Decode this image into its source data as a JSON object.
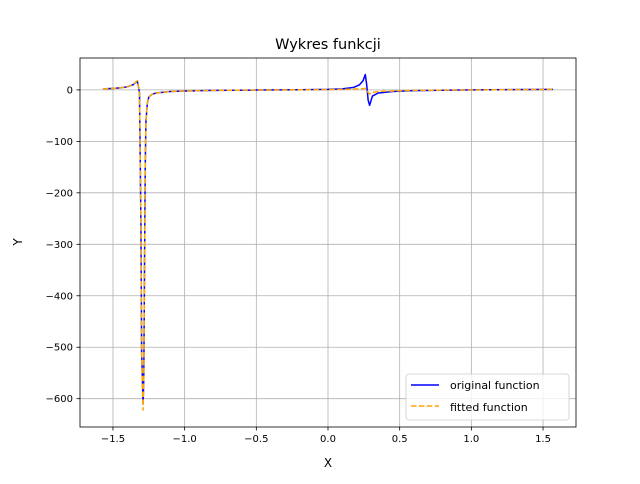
{
  "chart_data": {
    "type": "line",
    "title": "Wykres funkcji",
    "xlabel": "X",
    "ylabel": "Y",
    "xlim": [
      -1.73,
      1.73
    ],
    "ylim": [
      -655,
      62
    ],
    "grid": true,
    "legend_position": "lower-right",
    "x_ticks": [
      -1.5,
      -1.0,
      -0.5,
      0.0,
      0.5,
      1.0,
      1.5
    ],
    "x_tick_labels": [
      "−1.5",
      "−1.0",
      "−0.5",
      "0.0",
      "0.5",
      "1.0",
      "1.5"
    ],
    "y_ticks": [
      0,
      -100,
      -200,
      -300,
      -400,
      -500,
      -600
    ],
    "y_tick_labels": [
      "0",
      "−100",
      "−200",
      "−300",
      "−400",
      "−500",
      "−600"
    ],
    "colors": {
      "original": "#0000ff",
      "fitted": "#ffa500",
      "grid": "#b0b0b0"
    },
    "series": [
      {
        "name": "original function",
        "style": "solid",
        "color": "#0000ff",
        "x": [
          -1.57,
          -1.5,
          -1.45,
          -1.4,
          -1.36,
          -1.33,
          -1.315,
          -1.305,
          -1.3,
          -1.29,
          -1.285,
          -1.28,
          -1.275,
          -1.27,
          -1.26,
          -1.25,
          -1.23,
          -1.2,
          -1.1,
          -1.0,
          -0.8,
          -0.5,
          -0.2,
          0.0,
          0.1,
          0.18,
          0.22,
          0.245,
          0.26,
          0.27,
          0.28,
          0.29,
          0.31,
          0.35,
          0.45,
          0.6,
          1.0,
          1.57
        ],
        "y": [
          2,
          3,
          4,
          6,
          10,
          17,
          -5,
          -260,
          -510,
          -610,
          -560,
          -350,
          -150,
          -60,
          -25,
          -14,
          -9,
          -6,
          -3,
          -2,
          -1,
          -0.3,
          0.3,
          1,
          2,
          5,
          10,
          18,
          30,
          10,
          -20,
          -30,
          -12,
          -6,
          -3,
          -1.5,
          0,
          1
        ]
      },
      {
        "name": "fitted function",
        "style": "dashed",
        "color": "#ffa500",
        "x": [
          -1.57,
          -1.5,
          -1.45,
          -1.4,
          -1.36,
          -1.33,
          -1.315,
          -1.305,
          -1.3,
          -1.29,
          -1.285,
          -1.28,
          -1.275,
          -1.27,
          -1.26,
          -1.25,
          -1.23,
          -1.2,
          -1.1,
          -1.0,
          -0.8,
          -0.5,
          -0.2,
          0.0,
          0.1,
          0.18,
          0.22,
          0.245,
          0.26,
          0.27,
          0.28,
          0.29,
          0.31,
          0.35,
          0.45,
          0.6,
          1.0,
          1.57
        ],
        "y": [
          2,
          3,
          4,
          6,
          10,
          18,
          -5,
          -260,
          -510,
          -622,
          -560,
          -350,
          -150,
          -60,
          -25,
          -14,
          -9,
          -6,
          -3,
          -2,
          -1,
          -0.3,
          0.3,
          0.5,
          1,
          1.5,
          2,
          2.5,
          3,
          2,
          -5,
          -8,
          -5,
          -3,
          -2,
          -1,
          0,
          1
        ]
      }
    ]
  }
}
